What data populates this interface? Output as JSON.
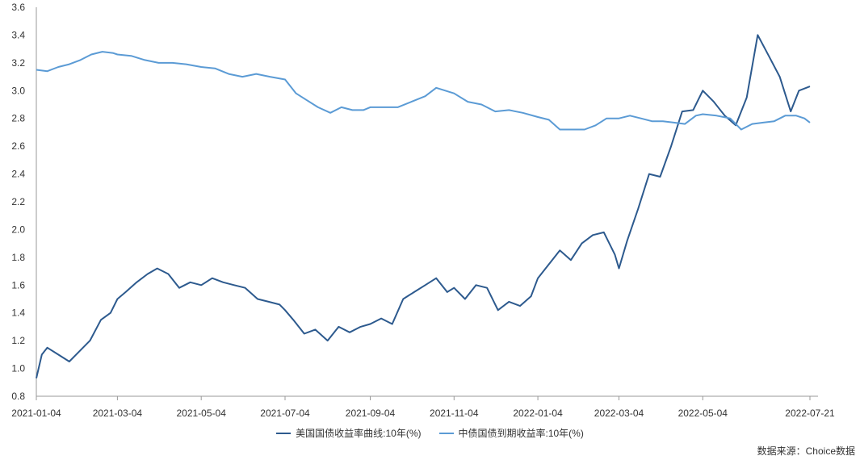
{
  "chart_data": {
    "type": "line",
    "title": "",
    "xlabel": "",
    "ylabel": "",
    "ylim": [
      0.8,
      3.6
    ],
    "y_ticks": [
      "0.8",
      "1.0",
      "1.2",
      "1.4",
      "1.6",
      "1.8",
      "2.0",
      "2.2",
      "2.4",
      "2.6",
      "2.8",
      "3.0",
      "3.2",
      "3.4",
      "3.6"
    ],
    "x_range": [
      "2021-01-04",
      "2022-07-21"
    ],
    "x_ticks": [
      "2021-01-04",
      "2021-03-04",
      "2021-05-04",
      "2021-07-04",
      "2021-09-04",
      "2021-11-04",
      "2022-01-04",
      "2022-03-04",
      "2022-05-04",
      "2022-07-21"
    ],
    "grid": false,
    "legend_position": "bottom",
    "source_note": "数据来源：Choice数据",
    "series": [
      {
        "name": "美国国债收益率曲线:10年(%)",
        "color": "#2d5a8e",
        "points": [
          [
            "2021-01-04",
            0.93
          ],
          [
            "2021-01-08",
            1.1
          ],
          [
            "2021-01-12",
            1.15
          ],
          [
            "2021-01-20",
            1.1
          ],
          [
            "2021-01-28",
            1.05
          ],
          [
            "2021-02-04",
            1.12
          ],
          [
            "2021-02-12",
            1.2
          ],
          [
            "2021-02-20",
            1.35
          ],
          [
            "2021-02-27",
            1.4
          ],
          [
            "2021-03-04",
            1.5
          ],
          [
            "2021-03-10",
            1.55
          ],
          [
            "2021-03-18",
            1.62
          ],
          [
            "2021-03-26",
            1.68
          ],
          [
            "2021-04-02",
            1.72
          ],
          [
            "2021-04-10",
            1.68
          ],
          [
            "2021-04-18",
            1.58
          ],
          [
            "2021-04-26",
            1.62
          ],
          [
            "2021-05-04",
            1.6
          ],
          [
            "2021-05-12",
            1.65
          ],
          [
            "2021-05-20",
            1.62
          ],
          [
            "2021-05-28",
            1.6
          ],
          [
            "2021-06-05",
            1.58
          ],
          [
            "2021-06-14",
            1.5
          ],
          [
            "2021-06-22",
            1.48
          ],
          [
            "2021-06-30",
            1.46
          ],
          [
            "2021-07-04",
            1.42
          ],
          [
            "2021-07-10",
            1.35
          ],
          [
            "2021-07-18",
            1.25
          ],
          [
            "2021-07-26",
            1.28
          ],
          [
            "2021-08-04",
            1.2
          ],
          [
            "2021-08-12",
            1.3
          ],
          [
            "2021-08-20",
            1.26
          ],
          [
            "2021-08-28",
            1.3
          ],
          [
            "2021-09-04",
            1.32
          ],
          [
            "2021-09-12",
            1.36
          ],
          [
            "2021-09-20",
            1.32
          ],
          [
            "2021-09-28",
            1.5
          ],
          [
            "2021-10-06",
            1.55
          ],
          [
            "2021-10-14",
            1.6
          ],
          [
            "2021-10-22",
            1.65
          ],
          [
            "2021-10-30",
            1.55
          ],
          [
            "2021-11-04",
            1.58
          ],
          [
            "2021-11-12",
            1.5
          ],
          [
            "2021-11-20",
            1.6
          ],
          [
            "2021-11-28",
            1.58
          ],
          [
            "2021-12-06",
            1.42
          ],
          [
            "2021-12-14",
            1.48
          ],
          [
            "2021-12-22",
            1.45
          ],
          [
            "2021-12-30",
            1.52
          ],
          [
            "2022-01-04",
            1.65
          ],
          [
            "2022-01-12",
            1.75
          ],
          [
            "2022-01-20",
            1.85
          ],
          [
            "2022-01-28",
            1.78
          ],
          [
            "2022-02-05",
            1.9
          ],
          [
            "2022-02-13",
            1.96
          ],
          [
            "2022-02-21",
            1.98
          ],
          [
            "2022-03-01",
            1.82
          ],
          [
            "2022-03-04",
            1.72
          ],
          [
            "2022-03-10",
            1.92
          ],
          [
            "2022-03-18",
            2.15
          ],
          [
            "2022-03-26",
            2.4
          ],
          [
            "2022-04-03",
            2.38
          ],
          [
            "2022-04-11",
            2.6
          ],
          [
            "2022-04-19",
            2.85
          ],
          [
            "2022-04-27",
            2.86
          ],
          [
            "2022-05-04",
            3.0
          ],
          [
            "2022-05-12",
            2.92
          ],
          [
            "2022-05-20",
            2.82
          ],
          [
            "2022-05-28",
            2.75
          ],
          [
            "2022-06-05",
            2.95
          ],
          [
            "2022-06-13",
            3.4
          ],
          [
            "2022-06-21",
            3.25
          ],
          [
            "2022-06-29",
            3.1
          ],
          [
            "2022-07-07",
            2.85
          ],
          [
            "2022-07-13",
            3.0
          ],
          [
            "2022-07-21",
            3.03
          ]
        ]
      },
      {
        "name": "中债国债到期收益率:10年(%)",
        "color": "#5b9bd5",
        "points": [
          [
            "2021-01-04",
            3.15
          ],
          [
            "2021-01-12",
            3.14
          ],
          [
            "2021-01-20",
            3.17
          ],
          [
            "2021-01-28",
            3.19
          ],
          [
            "2021-02-05",
            3.22
          ],
          [
            "2021-02-13",
            3.26
          ],
          [
            "2021-02-21",
            3.28
          ],
          [
            "2021-03-01",
            3.27
          ],
          [
            "2021-03-04",
            3.26
          ],
          [
            "2021-03-14",
            3.25
          ],
          [
            "2021-03-24",
            3.22
          ],
          [
            "2021-04-03",
            3.2
          ],
          [
            "2021-04-13",
            3.2
          ],
          [
            "2021-04-23",
            3.19
          ],
          [
            "2021-05-04",
            3.17
          ],
          [
            "2021-05-14",
            3.16
          ],
          [
            "2021-05-24",
            3.12
          ],
          [
            "2021-06-03",
            3.1
          ],
          [
            "2021-06-13",
            3.12
          ],
          [
            "2021-06-23",
            3.1
          ],
          [
            "2021-07-04",
            3.08
          ],
          [
            "2021-07-12",
            2.98
          ],
          [
            "2021-07-20",
            2.93
          ],
          [
            "2021-07-28",
            2.88
          ],
          [
            "2021-08-06",
            2.84
          ],
          [
            "2021-08-14",
            2.88
          ],
          [
            "2021-08-22",
            2.86
          ],
          [
            "2021-08-30",
            2.86
          ],
          [
            "2021-09-04",
            2.88
          ],
          [
            "2021-09-14",
            2.88
          ],
          [
            "2021-09-24",
            2.88
          ],
          [
            "2021-10-04",
            2.92
          ],
          [
            "2021-10-14",
            2.96
          ],
          [
            "2021-10-22",
            3.02
          ],
          [
            "2021-11-04",
            2.98
          ],
          [
            "2021-11-14",
            2.92
          ],
          [
            "2021-11-24",
            2.9
          ],
          [
            "2021-12-04",
            2.85
          ],
          [
            "2021-12-14",
            2.86
          ],
          [
            "2021-12-24",
            2.84
          ],
          [
            "2022-01-04",
            2.81
          ],
          [
            "2022-01-12",
            2.79
          ],
          [
            "2022-01-20",
            2.72
          ],
          [
            "2022-01-28",
            2.72
          ],
          [
            "2022-02-07",
            2.72
          ],
          [
            "2022-02-15",
            2.75
          ],
          [
            "2022-02-23",
            2.8
          ],
          [
            "2022-03-04",
            2.8
          ],
          [
            "2022-03-12",
            2.82
          ],
          [
            "2022-03-20",
            2.8
          ],
          [
            "2022-03-28",
            2.78
          ],
          [
            "2022-04-05",
            2.78
          ],
          [
            "2022-04-13",
            2.77
          ],
          [
            "2022-04-21",
            2.76
          ],
          [
            "2022-04-29",
            2.82
          ],
          [
            "2022-05-04",
            2.83
          ],
          [
            "2022-05-14",
            2.82
          ],
          [
            "2022-05-24",
            2.8
          ],
          [
            "2022-06-01",
            2.72
          ],
          [
            "2022-06-09",
            2.76
          ],
          [
            "2022-06-17",
            2.77
          ],
          [
            "2022-06-25",
            2.78
          ],
          [
            "2022-07-03",
            2.82
          ],
          [
            "2022-07-11",
            2.82
          ],
          [
            "2022-07-17",
            2.8
          ],
          [
            "2022-07-21",
            2.77
          ]
        ]
      }
    ]
  }
}
